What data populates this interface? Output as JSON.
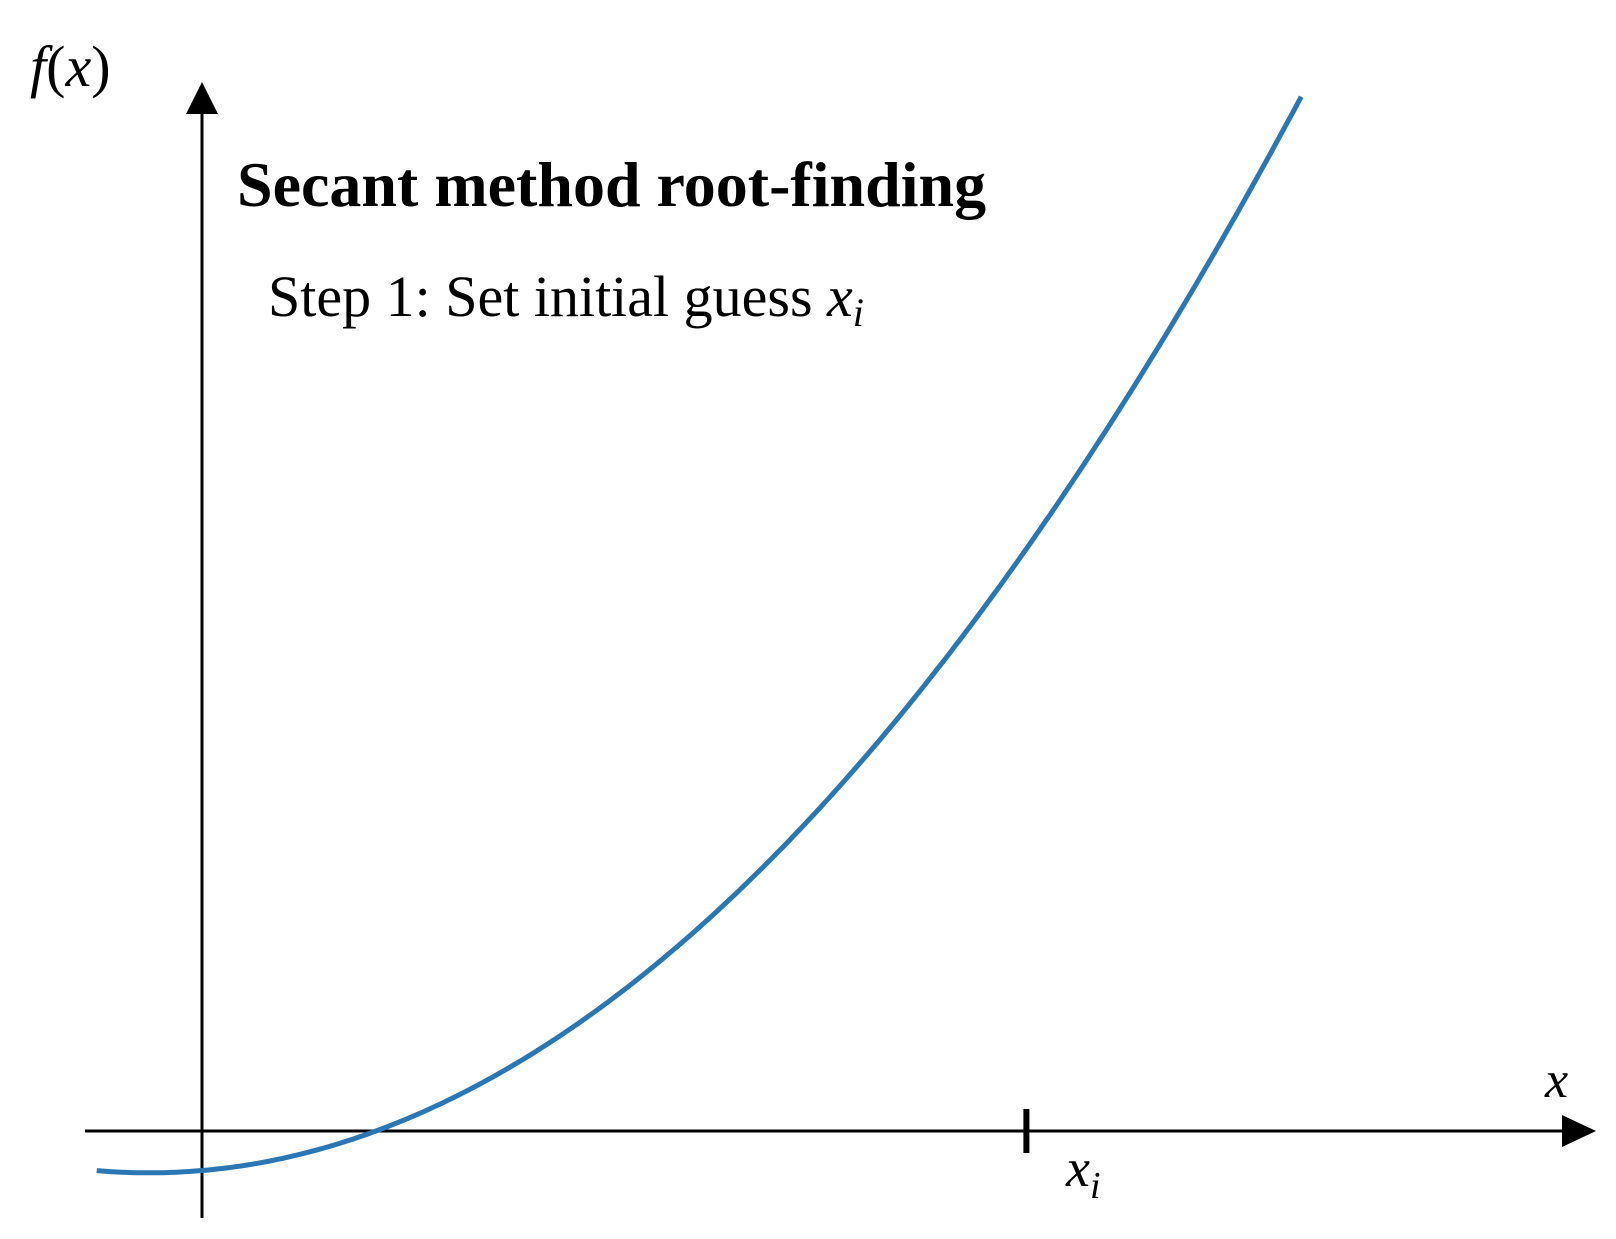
{
  "title": "Secant method root-finding",
  "step": {
    "text": "Step 1: Set initial guess ",
    "var": "x",
    "sub": "i"
  },
  "axes": {
    "y_label": {
      "func": "f",
      "open": "(",
      "var": "x",
      "close": ")"
    },
    "x_label": "x"
  },
  "tick": {
    "var": "x",
    "sub": "i"
  },
  "colors": {
    "curve": "#2a77b4",
    "axes": "#000000"
  },
  "curve": {
    "function": "quadratic",
    "vertex_x": -0.58,
    "vertex_y": -0.41,
    "root_x": 1.9,
    "tick_x": 9.0,
    "x_range": [
      -1.15,
      12.0
    ]
  }
}
